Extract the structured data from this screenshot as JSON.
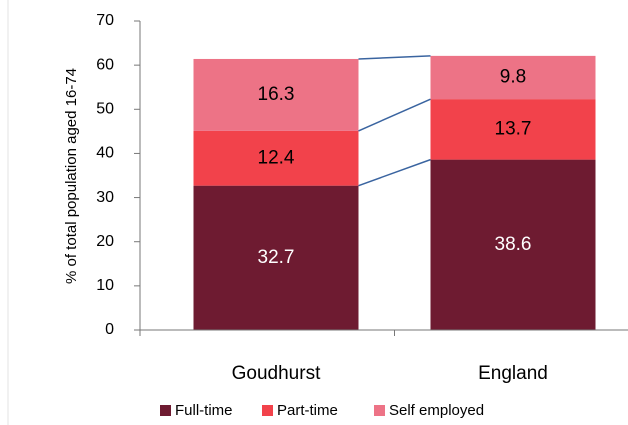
{
  "chart_data": {
    "type": "stacked_bar",
    "ylabel": "% of total population aged  16-74",
    "categories": [
      "Goudhurst",
      "England"
    ],
    "series": [
      {
        "name": "Full-time",
        "color": "#6e1b31",
        "label_color": "#ffffff",
        "values": [
          32.7,
          38.6
        ]
      },
      {
        "name": "Part-time",
        "color": "#f2424b",
        "label_color": "#000000",
        "values": [
          12.4,
          13.7
        ]
      },
      {
        "name": "Self employed",
        "color": "#ed7386",
        "label_color": "#000000",
        "values": [
          16.3,
          9.8
        ]
      }
    ],
    "ylim": [
      0,
      70
    ],
    "yticks": [
      0,
      10,
      20,
      30,
      40,
      50,
      60,
      70
    ],
    "series_lines": true,
    "legend": "bottom"
  }
}
